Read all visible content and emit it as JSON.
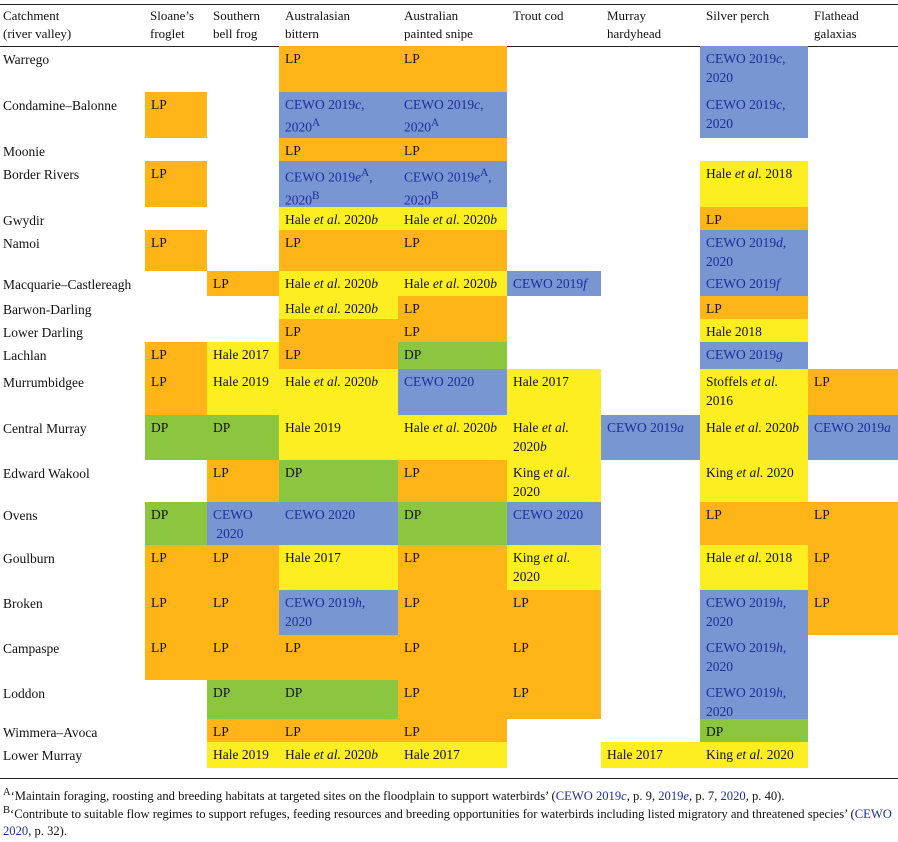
{
  "headers": [
    [
      "Catchment",
      "(river valley)"
    ],
    [
      "Sloane’s",
      "froglet"
    ],
    [
      "Southern",
      "bell frog"
    ],
    [
      "Australasian",
      "bittern"
    ],
    [
      "Australian",
      "painted snipe"
    ],
    [
      "Trout cod"
    ],
    [
      "Murray",
      "hardyhead"
    ],
    [
      "Silver perch"
    ],
    [
      "Flathead",
      "galaxias"
    ]
  ],
  "rows": [
    {
      "catchment": "Warrego",
      "cells": [
        null,
        null,
        {
          "t": "LP",
          "c": "LP"
        },
        {
          "t": "LP",
          "c": "LP"
        },
        null,
        null,
        {
          "t": "CEWO 2019<i>c</i>,<br>2020",
          "c": "B"
        },
        null
      ]
    },
    {
      "catchment": "Condamine–Balonne",
      "cells": [
        {
          "t": "LP",
          "c": "LP"
        },
        null,
        {
          "t": "CEWO 2019<i>c</i>,<br>2020<sup>A</sup>",
          "c": "B"
        },
        {
          "t": "CEWO 2019<i>c</i>,<br>2020<sup>A</sup>",
          "c": "B"
        },
        null,
        null,
        {
          "t": "CEWO 2019<i>c</i>,<br>2020",
          "c": "B"
        },
        null
      ]
    },
    {
      "catchment": "Moonie",
      "cells": [
        null,
        null,
        {
          "t": "LP",
          "c": "LP"
        },
        {
          "t": "LP",
          "c": "LP"
        },
        null,
        null,
        null,
        null
      ]
    },
    {
      "catchment": "Border Rivers",
      "cells": [
        {
          "t": "LP",
          "c": "LP"
        },
        null,
        {
          "t": "CEWO 2019<i>e</i><sup>A</sup>,<br>2020<sup>B</sup>",
          "c": "B"
        },
        {
          "t": "CEWO 2019<i>e</i><sup>A</sup>,<br>2020<sup>B</sup>",
          "c": "B"
        },
        null,
        null,
        {
          "t": "Hale <i>et al.</i> 2018",
          "c": "Y"
        },
        null
      ]
    },
    {
      "catchment": "Gwydir",
      "cells": [
        null,
        null,
        {
          "t": "Hale <i>et al.</i> 2020<i>b</i>",
          "c": "Y"
        },
        {
          "t": "Hale <i>et al.</i> 2020<i>b</i>",
          "c": "Y"
        },
        null,
        null,
        {
          "t": "LP",
          "c": "LP"
        },
        null
      ]
    },
    {
      "catchment": "Namoi",
      "cells": [
        {
          "t": "LP",
          "c": "LP"
        },
        null,
        {
          "t": "LP",
          "c": "LP"
        },
        {
          "t": "LP",
          "c": "LP"
        },
        null,
        null,
        {
          "t": "CEWO 2019<i>d</i>,<br>2020",
          "c": "B"
        },
        null
      ]
    },
    {
      "catchment": "Macquarie–Castlereagh",
      "cells": [
        null,
        {
          "t": "LP",
          "c": "LP"
        },
        {
          "t": "Hale <i>et al.</i> 2020<i>b</i>",
          "c": "Y"
        },
        {
          "t": "Hale <i>et al.</i> 2020<i>b</i>",
          "c": "Y"
        },
        {
          "t": "CEWO 2019<i>f</i>",
          "c": "B"
        },
        null,
        {
          "t": "CEWO 2019<i>f</i>",
          "c": "B"
        },
        null
      ]
    },
    {
      "catchment": "Barwon-Darling",
      "cells": [
        null,
        null,
        {
          "t": "Hale <i>et al.</i> 2020<i>b</i>",
          "c": "Y"
        },
        {
          "t": "LP",
          "c": "LP"
        },
        null,
        null,
        {
          "t": "LP",
          "c": "LP"
        },
        null
      ]
    },
    {
      "catchment": "Lower Darling",
      "cells": [
        null,
        null,
        {
          "t": "LP",
          "c": "LP"
        },
        {
          "t": "LP",
          "c": "LP"
        },
        null,
        null,
        {
          "t": "Hale 2018",
          "c": "Y"
        },
        null
      ]
    },
    {
      "catchment": "Lachlan",
      "cells": [
        {
          "t": "LP",
          "c": "LP"
        },
        {
          "t": "Hale 2017",
          "c": "Y"
        },
        {
          "t": "LP",
          "c": "LP"
        },
        {
          "t": "DP",
          "c": "G"
        },
        null,
        null,
        {
          "t": "CEWO 2019<i>g</i>",
          "c": "B"
        },
        null
      ]
    },
    {
      "catchment": "Murrumbidgee",
      "cells": [
        {
          "t": "LP",
          "c": "LP"
        },
        {
          "t": "Hale 2019",
          "c": "Y"
        },
        {
          "t": "Hale <i>et al.</i> 2020<i>b</i>",
          "c": "Y"
        },
        {
          "t": "CEWO 2020",
          "c": "B"
        },
        {
          "t": "Hale 2017",
          "c": "Y"
        },
        null,
        {
          "t": "Stoffels <i>et al.</i><br>2016",
          "c": "Y"
        },
        {
          "t": "LP",
          "c": "LP"
        }
      ]
    },
    {
      "catchment": "Central Murray",
      "cells": [
        {
          "t": "DP",
          "c": "G"
        },
        {
          "t": "DP",
          "c": "G"
        },
        {
          "t": "Hale 2019",
          "c": "Y"
        },
        {
          "t": "Hale <i>et al.</i> 2020<i>b</i>",
          "c": "Y"
        },
        {
          "t": "Hale <i>et al.</i><br>2020<i>b</i>",
          "c": "Y"
        },
        {
          "t": "CEWO 2019<i>a</i>",
          "c": "B"
        },
        {
          "t": "Hale <i>et al.</i> 2020<i>b</i>",
          "c": "Y"
        },
        {
          "t": "CEWO 2019<i>a</i>",
          "c": "B"
        }
      ]
    },
    {
      "catchment": "Edward Wakool",
      "cells": [
        null,
        {
          "t": "LP",
          "c": "LP"
        },
        {
          "t": "DP",
          "c": "G"
        },
        {
          "t": "LP",
          "c": "LP"
        },
        {
          "t": "King <i>et al.</i><br>2020",
          "c": "Y"
        },
        null,
        {
          "t": "King <i>et al.</i> 2020",
          "c": "Y"
        },
        null
      ]
    },
    {
      "catchment": "Ovens",
      "cells": [
        {
          "t": "DP",
          "c": "G"
        },
        {
          "t": "CEWO<br>&nbsp;2020",
          "c": "B"
        },
        {
          "t": "CEWO 2020",
          "c": "B"
        },
        {
          "t": "DP",
          "c": "G"
        },
        {
          "t": "CEWO 2020",
          "c": "B"
        },
        null,
        {
          "t": "LP",
          "c": "LP"
        },
        {
          "t": "LP",
          "c": "LP"
        }
      ]
    },
    {
      "catchment": "Goulburn",
      "cells": [
        {
          "t": "LP",
          "c": "LP"
        },
        {
          "t": "LP",
          "c": "LP"
        },
        {
          "t": "Hale 2017",
          "c": "Y"
        },
        {
          "t": "LP",
          "c": "LP"
        },
        {
          "t": "King <i>et al.</i><br>2020",
          "c": "Y"
        },
        null,
        {
          "t": "Hale <i>et al.</i> 2018",
          "c": "Y"
        },
        {
          "t": "LP",
          "c": "LP"
        }
      ]
    },
    {
      "catchment": "Broken",
      "cells": [
        {
          "t": "LP",
          "c": "LP"
        },
        {
          "t": "LP",
          "c": "LP"
        },
        {
          "t": "CEWO 2019<i>h</i>,<br>2020",
          "c": "B"
        },
        {
          "t": "LP",
          "c": "LP"
        },
        {
          "t": "LP",
          "c": "LP"
        },
        null,
        {
          "t": "CEWO 2019<i>h</i>,<br>2020",
          "c": "B"
        },
        {
          "t": "LP",
          "c": "LP"
        }
      ]
    },
    {
      "catchment": "Campaspe",
      "cells": [
        {
          "t": "LP",
          "c": "LP"
        },
        {
          "t": "LP",
          "c": "LP"
        },
        {
          "t": "LP",
          "c": "LP"
        },
        {
          "t": "LP",
          "c": "LP"
        },
        {
          "t": "LP",
          "c": "LP"
        },
        null,
        {
          "t": "CEWO 2019<i>h</i>,<br>2020",
          "c": "B"
        },
        null
      ]
    },
    {
      "catchment": "Loddon",
      "cells": [
        null,
        {
          "t": "DP",
          "c": "G"
        },
        {
          "t": "DP",
          "c": "G"
        },
        {
          "t": "LP",
          "c": "LP"
        },
        {
          "t": "LP",
          "c": "LP"
        },
        null,
        {
          "t": "CEWO 2019<i>h</i>,<br>2020",
          "c": "B"
        },
        null
      ]
    },
    {
      "catchment": "Wimmera–Avoca",
      "cells": [
        null,
        {
          "t": "LP",
          "c": "LP"
        },
        {
          "t": "LP",
          "c": "LP"
        },
        {
          "t": "LP",
          "c": "LP"
        },
        null,
        null,
        {
          "t": "DP",
          "c": "G"
        },
        null
      ]
    },
    {
      "catchment": "Lower Murray",
      "cells": [
        null,
        {
          "t": "Hale 2019",
          "c": "Y"
        },
        {
          "t": "Hale <i>et al.</i> 2020<i>b</i>",
          "c": "Y"
        },
        {
          "t": "Hale 2017",
          "c": "Y"
        },
        null,
        {
          "t": "Hale 2017",
          "c": "Y"
        },
        {
          "t": "King <i>et al.</i> 2020",
          "c": "Y"
        },
        null
      ]
    }
  ],
  "footnotes": [
    "<sup>A</sup>‘Maintain foraging, roosting and breeding habitats at targeted sites on the floodplain to support waterbirds’ (<span class=\"cite\">CEWO 2019<i>c</i></span>, p. 9, <span class=\"cite\">2019<i>e</i></span>, p. 7, <span class=\"cite\">2020</span>, p. 40).",
    "<sup>B</sup>‘Contribute to suitable flow regimes to support refuges, feeding resources and breeding opportunities for waterbirds including listed migratory and threatened species’ (<span class=\"cite\">CEWO 2020</span>, p. 32)."
  ]
}
